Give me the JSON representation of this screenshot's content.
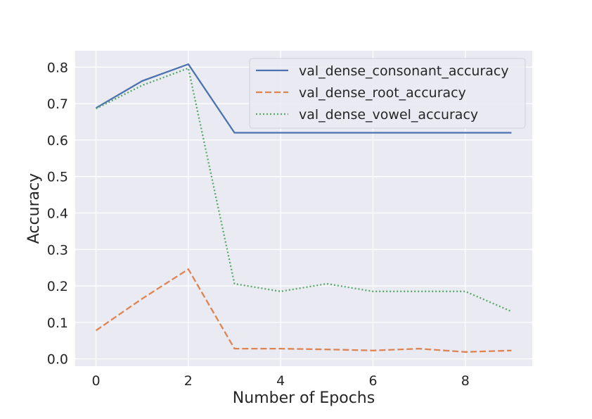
{
  "chart_data": {
    "type": "line",
    "title": "",
    "xlabel": "Number of Epochs",
    "ylabel": "Accuracy",
    "x": [
      0,
      1,
      2,
      3,
      4,
      5,
      6,
      7,
      8,
      9
    ],
    "xlim": [
      -0.45,
      9.45
    ],
    "ylim": [
      -0.02,
      0.845
    ],
    "xticks": [
      0,
      2,
      4,
      6,
      8
    ],
    "yticks": [
      0.0,
      0.1,
      0.2,
      0.3,
      0.4,
      0.5,
      0.6,
      0.7,
      0.8
    ],
    "xtick_labels": [
      "0",
      "2",
      "4",
      "6",
      "8"
    ],
    "ytick_labels": [
      "0.0",
      "0.1",
      "0.2",
      "0.3",
      "0.4",
      "0.5",
      "0.6",
      "0.7",
      "0.8"
    ],
    "grid": true,
    "legend_position": "top-right",
    "series": [
      {
        "name": "val_dense_consonant_accuracy",
        "color": "#4c72b0",
        "style": "solid",
        "values": [
          0.688,
          0.762,
          0.808,
          0.62,
          0.62,
          0.62,
          0.62,
          0.62,
          0.62,
          0.62
        ]
      },
      {
        "name": "val_dense_root_accuracy",
        "color": "#dd8452",
        "style": "dashed",
        "values": [
          0.078,
          0.165,
          0.246,
          0.028,
          0.028,
          0.026,
          0.023,
          0.028,
          0.019,
          0.023
        ]
      },
      {
        "name": "val_dense_vowel_accuracy",
        "color": "#55a868",
        "style": "dotted",
        "values": [
          0.686,
          0.75,
          0.797,
          0.206,
          0.185,
          0.206,
          0.185,
          0.185,
          0.185,
          0.13
        ]
      }
    ]
  }
}
